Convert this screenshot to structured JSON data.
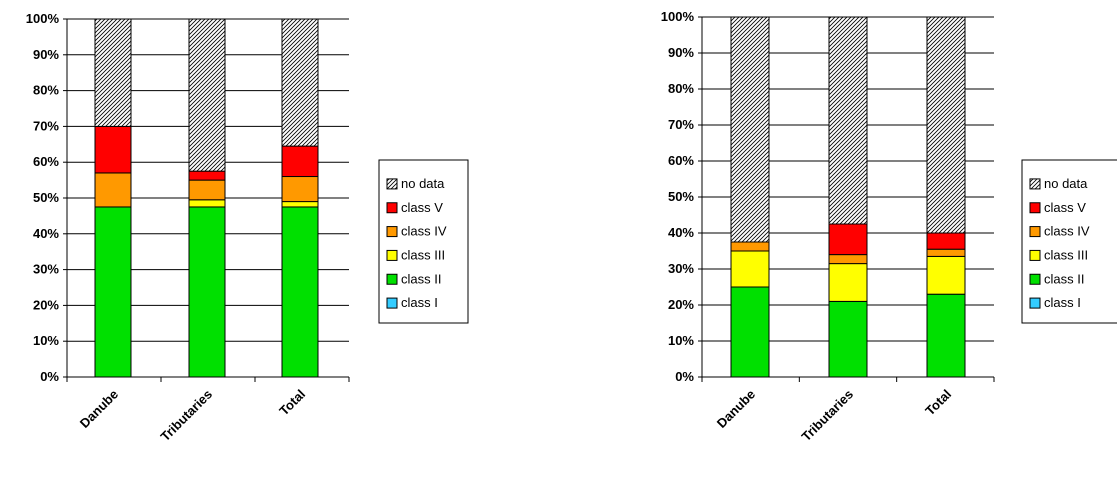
{
  "chart_data": [
    {
      "type": "bar",
      "stacked": true,
      "title": "",
      "xlabel": "",
      "ylabel": "",
      "ylim": [
        0,
        100
      ],
      "y_ticks": [
        "0%",
        "10%",
        "20%",
        "30%",
        "40%",
        "50%",
        "60%",
        "70%",
        "80%",
        "90%",
        "100%"
      ],
      "grid": true,
      "legend_position": "right",
      "categories": [
        "Danube",
        "Tributaries",
        "Total"
      ],
      "series": [
        {
          "name": "class I",
          "color": "#33CCFF",
          "values": [
            0,
            0,
            0
          ]
        },
        {
          "name": "class II",
          "color": "#00E000",
          "values": [
            47.5,
            47.5,
            47.5
          ]
        },
        {
          "name": "class III",
          "color": "#FFFF00",
          "values": [
            0,
            2,
            1.5
          ]
        },
        {
          "name": "class IV",
          "color": "#FF9900",
          "values": [
            9.5,
            5.5,
            7
          ]
        },
        {
          "name": "class V",
          "color": "#FF0000",
          "values": [
            13,
            2.5,
            8.5
          ]
        },
        {
          "name": "no data",
          "color": "#FFFFFF",
          "pattern": "hatch",
          "values": [
            30,
            42.5,
            35.5
          ]
        }
      ]
    },
    {
      "type": "bar",
      "stacked": true,
      "title": "",
      "xlabel": "",
      "ylabel": "",
      "ylim": [
        0,
        100
      ],
      "y_ticks": [
        "0%",
        "10%",
        "20%",
        "30%",
        "40%",
        "50%",
        "60%",
        "70%",
        "80%",
        "90%",
        "100%"
      ],
      "grid": true,
      "legend_position": "right",
      "categories": [
        "Danube",
        "Tributaries",
        "Total"
      ],
      "series": [
        {
          "name": "class I",
          "color": "#33CCFF",
          "values": [
            0,
            0,
            0
          ]
        },
        {
          "name": "class II",
          "color": "#00E000",
          "values": [
            25,
            21,
            23
          ]
        },
        {
          "name": "class III",
          "color": "#FFFF00",
          "values": [
            10,
            10.5,
            10.5
          ]
        },
        {
          "name": "class IV",
          "color": "#FF9900",
          "values": [
            2.5,
            2.5,
            2
          ]
        },
        {
          "name": "class V",
          "color": "#FF0000",
          "values": [
            0,
            8.5,
            4.5
          ]
        },
        {
          "name": "no data",
          "color": "#FFFFFF",
          "pattern": "hatch",
          "values": [
            62.5,
            57.5,
            60
          ]
        }
      ]
    }
  ]
}
